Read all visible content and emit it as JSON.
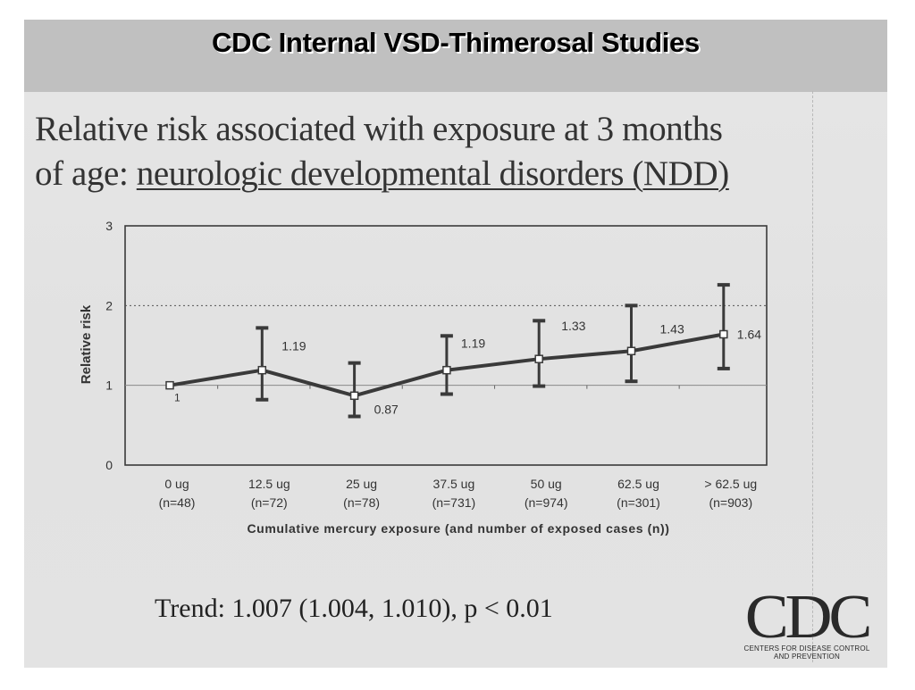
{
  "slide": {
    "header_title": "CDC Internal VSD-Thimerosal Studies",
    "subtitle_line1": "Relative risk associated with exposure at 3 months",
    "subtitle_line2_prefix": "of age: ",
    "subtitle_line2_underlined": "neurologic developmental disorders (NDD)",
    "trend_text": "Trend: 1.007 (1.004, 1.010), p < 0.01",
    "logo": {
      "letters": "CDC",
      "line1": "CENTERS FOR DISEASE CONTROL",
      "line2": "AND PREVENTION"
    }
  },
  "colors": {
    "header_band": "#c0c0c0",
    "slide_background": "#e4e4e4",
    "series_line": "#3a3a3a",
    "text": "#333333"
  },
  "chart_data": {
    "type": "line",
    "title": "Relative risk associated with exposure at 3 months of age: neurologic developmental disorders (NDD)",
    "xlabel": "Cumulative mercury exposure (and number of exposed cases (n))",
    "ylabel": "Relative risk",
    "ylim": [
      0,
      3
    ],
    "yticks": [
      "0",
      "1",
      "2",
      "3"
    ],
    "grid": "dotted line at 2, solid reference line at 1",
    "categories": [
      "0 ug",
      "12.5 ug",
      "25 ug",
      "37.5 ug",
      "50 ug",
      "62.5 ug",
      "> 62.5 ug"
    ],
    "category_counts": [
      "(n=48)",
      "(n=72)",
      "(n=78)",
      "(n=731)",
      "(n=974)",
      "(n=301)",
      "(n=903)"
    ],
    "series": [
      {
        "name": "Relative risk",
        "values": [
          1.0,
          1.19,
          0.87,
          1.19,
          1.33,
          1.43,
          1.64
        ],
        "data_labels": [
          "1",
          "1.19",
          "0.87",
          "1.19",
          "1.33",
          "1.43",
          "1.64"
        ],
        "ci_lower": [
          null,
          0.82,
          0.61,
          0.89,
          0.99,
          1.05,
          1.21
        ],
        "ci_upper": [
          null,
          1.72,
          1.28,
          1.62,
          1.81,
          2.0,
          2.26
        ]
      }
    ]
  }
}
